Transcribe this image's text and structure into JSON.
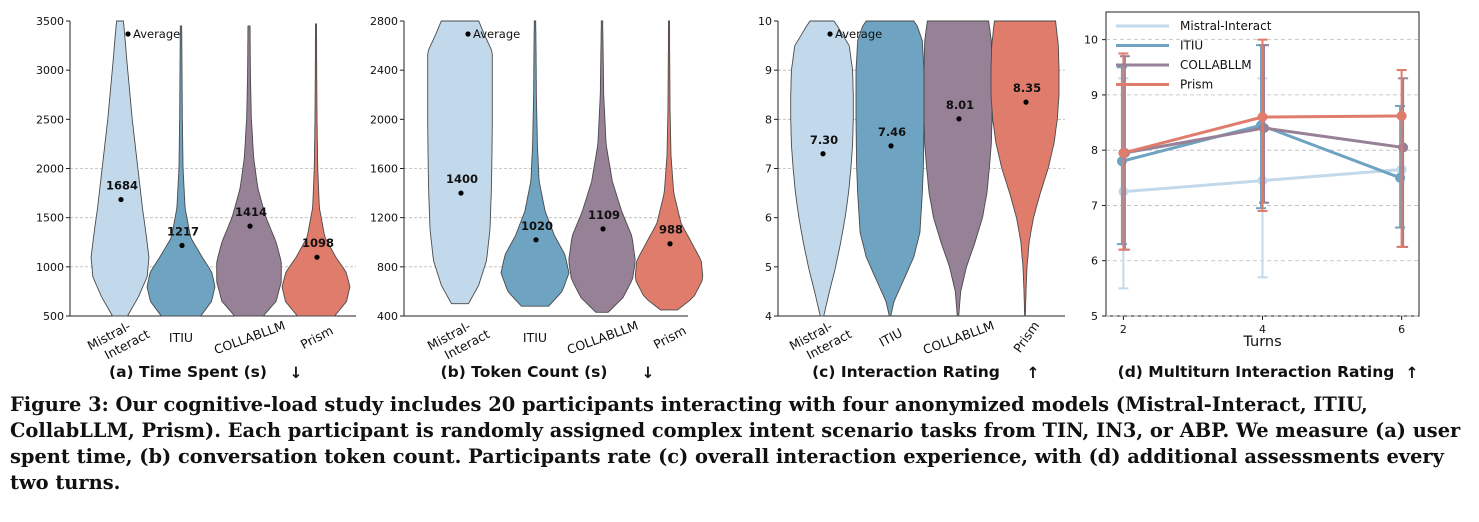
{
  "colors": {
    "Mistral-Interact": "#c2d9ec",
    "ITIU": "#6ea3c2",
    "COLLABLLM": "#978197",
    "Prism": "#e07c6b",
    "grid": "#bbbbbb",
    "axis": "#222222"
  },
  "legend_marker_label": "Average",
  "chart_data": [
    {
      "type": "violin",
      "title": "(a) Time Spent (s)",
      "arrow": "↓",
      "categories": [
        "Mistral-\nInteract",
        "ITIU",
        "COLLABLLM",
        "Prism"
      ],
      "series_names": [
        "Mistral-Interact",
        "ITIU",
        "COLLABLLM",
        "Prism"
      ],
      "averages": [
        1684,
        1217,
        1414,
        1098
      ],
      "average_labels": [
        "1684",
        "1217",
        "1414",
        "1098"
      ],
      "ylim": [
        500,
        3500
      ],
      "yticks": [
        500,
        1000,
        1500,
        2000,
        2500,
        3000,
        3500
      ],
      "grid_y": [
        1000,
        1500,
        2000
      ],
      "violin_range": [
        [
          500,
          3500
        ],
        [
          500,
          3450
        ],
        [
          500,
          3450
        ],
        [
          500,
          3470
        ]
      ],
      "violin_profiles": [
        [
          [
            500,
            0.22
          ],
          [
            700,
            0.55
          ],
          [
            900,
            0.8
          ],
          [
            1100,
            0.85
          ],
          [
            1300,
            0.78
          ],
          [
            1600,
            0.66
          ],
          [
            1900,
            0.56
          ],
          [
            2200,
            0.46
          ],
          [
            2500,
            0.36
          ],
          [
            2800,
            0.28
          ],
          [
            3100,
            0.2
          ],
          [
            3350,
            0.14
          ],
          [
            3500,
            0.1
          ]
        ],
        [
          [
            500,
            0.58
          ],
          [
            650,
            0.9
          ],
          [
            800,
            1.0
          ],
          [
            950,
            0.9
          ],
          [
            1100,
            0.62
          ],
          [
            1300,
            0.28
          ],
          [
            1600,
            0.12
          ],
          [
            2000,
            0.06
          ],
          [
            2500,
            0.04
          ],
          [
            3000,
            0.03
          ],
          [
            3450,
            0.02
          ]
        ],
        [
          [
            500,
            0.42
          ],
          [
            650,
            0.8
          ],
          [
            850,
            0.95
          ],
          [
            1050,
            0.95
          ],
          [
            1250,
            0.8
          ],
          [
            1500,
            0.5
          ],
          [
            1800,
            0.26
          ],
          [
            2100,
            0.14
          ],
          [
            2500,
            0.07
          ],
          [
            3000,
            0.04
          ],
          [
            3450,
            0.03
          ]
        ],
        [
          [
            500,
            0.55
          ],
          [
            650,
            0.9
          ],
          [
            800,
            1.0
          ],
          [
            950,
            0.88
          ],
          [
            1100,
            0.58
          ],
          [
            1300,
            0.26
          ],
          [
            1600,
            0.1
          ],
          [
            2000,
            0.05
          ],
          [
            2500,
            0.03
          ],
          [
            3000,
            0.02
          ],
          [
            3470,
            0.015
          ]
        ]
      ]
    },
    {
      "type": "violin",
      "title": "(b) Token Count (s)",
      "arrow": "↓",
      "categories": [
        "Mistral-\nInteract",
        "ITIU",
        "COLLABLLM",
        "Prism"
      ],
      "series_names": [
        "Mistral-Interact",
        "ITIU",
        "COLLABLLM",
        "Prism"
      ],
      "averages": [
        1400,
        1020,
        1109,
        988
      ],
      "average_labels": [
        "1400",
        "1020",
        "1109",
        "988"
      ],
      "ylim": [
        400,
        2800
      ],
      "yticks": [
        400,
        800,
        1200,
        1600,
        2000,
        2400,
        2800
      ],
      "grid_y": [
        800,
        1200,
        1600
      ],
      "violin_range": [
        [
          500,
          2800
        ],
        [
          480,
          2800
        ],
        [
          430,
          2800
        ],
        [
          450,
          2800
        ]
      ],
      "violin_profiles": [
        [
          [
            500,
            0.25
          ],
          [
            650,
            0.55
          ],
          [
            850,
            0.78
          ],
          [
            1100,
            0.88
          ],
          [
            1400,
            0.92
          ],
          [
            1700,
            0.94
          ],
          [
            2000,
            0.95
          ],
          [
            2300,
            0.95
          ],
          [
            2550,
            0.95
          ],
          [
            2700,
            0.7
          ],
          [
            2800,
            0.55
          ]
        ],
        [
          [
            480,
            0.4
          ],
          [
            600,
            0.8
          ],
          [
            750,
            1.0
          ],
          [
            900,
            0.88
          ],
          [
            1050,
            0.58
          ],
          [
            1250,
            0.3
          ],
          [
            1500,
            0.12
          ],
          [
            1800,
            0.07
          ],
          [
            2200,
            0.04
          ],
          [
            2600,
            0.03
          ],
          [
            2800,
            0.02
          ]
        ],
        [
          [
            430,
            0.18
          ],
          [
            550,
            0.62
          ],
          [
            700,
            0.9
          ],
          [
            850,
            0.98
          ],
          [
            1050,
            0.88
          ],
          [
            1250,
            0.58
          ],
          [
            1500,
            0.3
          ],
          [
            1800,
            0.12
          ],
          [
            2200,
            0.05
          ],
          [
            2600,
            0.03
          ],
          [
            2800,
            0.02
          ]
        ],
        [
          [
            450,
            0.25
          ],
          [
            550,
            0.72
          ],
          [
            700,
            1.0
          ],
          [
            850,
            0.95
          ],
          [
            1000,
            0.66
          ],
          [
            1150,
            0.36
          ],
          [
            1400,
            0.14
          ],
          [
            1700,
            0.06
          ],
          [
            2100,
            0.03
          ],
          [
            2500,
            0.02
          ],
          [
            2800,
            0.015
          ]
        ]
      ]
    },
    {
      "type": "violin",
      "title": "(c) Interaction Rating",
      "arrow": "↑",
      "categories": [
        "Mistral-\nInteract",
        "ITIU",
        "COLLABLLM",
        "Prism"
      ],
      "series_names": [
        "Mistral-Interact",
        "ITIU",
        "COLLABLLM",
        "Prism"
      ],
      "averages": [
        7.3,
        7.46,
        8.01,
        8.35
      ],
      "average_labels": [
        "7.30",
        "7.46",
        "8.01",
        "8.35"
      ],
      "ylim": [
        4,
        10
      ],
      "yticks": [
        4,
        5,
        6,
        7,
        8,
        9,
        10
      ],
      "grid_y": [
        7,
        8,
        9
      ],
      "violin_range": [
        [
          4,
          10
        ],
        [
          4,
          10
        ],
        [
          4,
          10
        ],
        [
          4,
          10
        ]
      ],
      "violin_profiles": [
        [
          [
            4,
            0.05
          ],
          [
            4.5,
            0.22
          ],
          [
            5,
            0.4
          ],
          [
            5.5,
            0.55
          ],
          [
            6,
            0.68
          ],
          [
            6.5,
            0.78
          ],
          [
            7,
            0.85
          ],
          [
            7.5,
            0.9
          ],
          [
            8,
            0.92
          ],
          [
            8.5,
            0.92
          ],
          [
            9,
            0.9
          ],
          [
            9.5,
            0.8
          ],
          [
            9.9,
            0.45
          ],
          [
            10,
            0.35
          ]
        ],
        [
          [
            4,
            0.02
          ],
          [
            4.3,
            0.12
          ],
          [
            4.7,
            0.38
          ],
          [
            5.2,
            0.7
          ],
          [
            5.7,
            0.88
          ],
          [
            6.5,
            0.95
          ],
          [
            7,
            0.98
          ],
          [
            8,
            1.0
          ],
          [
            9,
            1.0
          ],
          [
            9.6,
            0.95
          ],
          [
            9.9,
            0.8
          ],
          [
            10,
            0.7
          ]
        ],
        [
          [
            4,
            0.02
          ],
          [
            4.5,
            0.08
          ],
          [
            5,
            0.25
          ],
          [
            5.5,
            0.5
          ],
          [
            6,
            0.72
          ],
          [
            6.5,
            0.85
          ],
          [
            7,
            0.92
          ],
          [
            7.5,
            0.98
          ],
          [
            8,
            1.0
          ],
          [
            9,
            1.0
          ],
          [
            9.6,
            0.98
          ],
          [
            10,
            0.9
          ]
        ],
        [
          [
            4,
            0.01
          ],
          [
            4.5,
            0.03
          ],
          [
            5,
            0.06
          ],
          [
            5.5,
            0.12
          ],
          [
            6,
            0.25
          ],
          [
            6.5,
            0.45
          ],
          [
            7,
            0.68
          ],
          [
            7.5,
            0.85
          ],
          [
            8,
            0.95
          ],
          [
            8.5,
            1.0
          ],
          [
            9,
            1.0
          ],
          [
            9.5,
            0.98
          ],
          [
            10,
            0.9
          ]
        ]
      ]
    },
    {
      "type": "line",
      "title": "(d) Multiturn Interaction Rating",
      "arrow": "↑",
      "xlabel": "Turns",
      "x": [
        2,
        4,
        6
      ],
      "xticks": [
        2,
        4,
        6
      ],
      "xlim": [
        1.75,
        6.25
      ],
      "ylim": [
        5,
        10.5
      ],
      "yticks": [
        5,
        6,
        7,
        8,
        9,
        10
      ],
      "grid_y": [
        5,
        6,
        7,
        8,
        9,
        10
      ],
      "legend_location": "top-left",
      "series": [
        {
          "name": "Mistral-Interact",
          "values": [
            7.25,
            7.45,
            7.65
          ],
          "err_low": [
            5.5,
            5.7,
            6.25
          ],
          "err_high": [
            9.3,
            9.3,
            8.6
          ]
        },
        {
          "name": "ITIU",
          "values": [
            7.8,
            8.45,
            7.5
          ],
          "err_low": [
            6.3,
            6.95,
            6.6
          ],
          "err_high": [
            9.5,
            9.9,
            8.8
          ]
        },
        {
          "name": "COLLABLLM",
          "values": [
            7.95,
            8.4,
            8.05
          ],
          "err_low": [
            6.2,
            7.05,
            6.25
          ],
          "err_high": [
            9.7,
            9.9,
            9.3
          ]
        },
        {
          "name": "Prism",
          "values": [
            7.95,
            8.6,
            8.62
          ],
          "err_low": [
            6.2,
            6.9,
            6.25
          ],
          "err_high": [
            9.75,
            10.0,
            9.45
          ]
        }
      ]
    }
  ],
  "caption": "Figure 3: Our cognitive-load study includes 20 participants interacting with four anonymized models (Mistral-Interact, ITIU, CollabLLM, Prism). Each participant is randomly assigned complex intent scenario tasks from TIN, IN3, or ABP. We measure (a) user spent time, (b) conversation token count. Participants rate (c) overall interaction experience, with (d) additional assessments every two turns."
}
